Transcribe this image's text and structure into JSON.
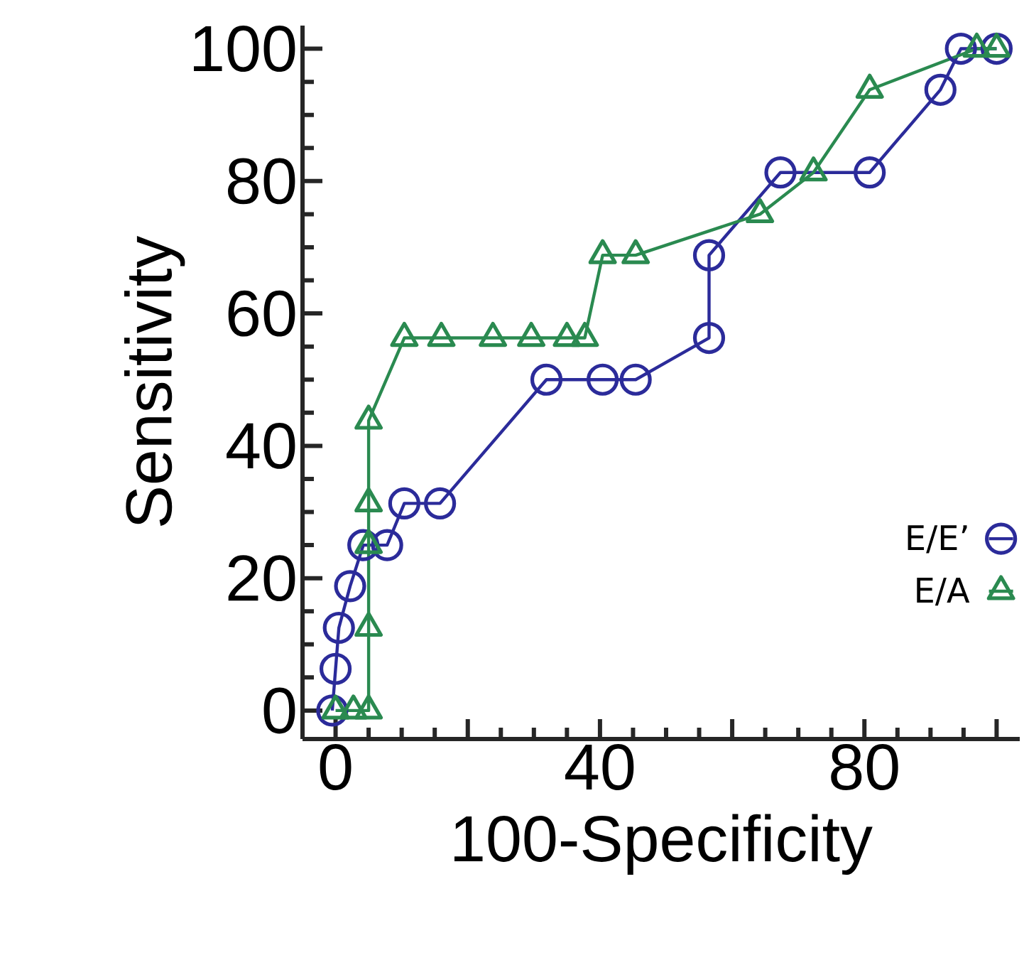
{
  "chart_data": {
    "type": "line",
    "xlabel": "100-Specificity",
    "ylabel": "Sensitivity",
    "xlim": [
      -5,
      103.5
    ],
    "ylim": [
      -4.3,
      103.5
    ],
    "xticks": [
      0,
      {
        "value": 20,
        "label": null
      },
      40,
      {
        "value": 60,
        "label": null
      },
      80,
      {
        "value": 100,
        "label": null
      }
    ],
    "yticks": [
      0,
      20,
      40,
      60,
      80,
      100
    ],
    "grid": false,
    "legend": "bottom right",
    "series": [
      {
        "name": "E/E’",
        "color": "#2b2b9a",
        "marker": "circle",
        "x": [
          -0.5,
          0,
          0.5,
          2.2,
          4.2,
          7.8,
          10.4,
          15.8,
          31.9,
          40.4,
          45.4,
          56.5,
          56.5,
          67.3,
          80.8,
          91.5,
          94.6,
          100
        ],
        "values": [
          0,
          6.3,
          12.5,
          18.8,
          25,
          25,
          31.3,
          31.3,
          50,
          50,
          50,
          56.3,
          68.8,
          81.3,
          81.3,
          93.8,
          100,
          100
        ]
      },
      {
        "name": "E/A",
        "color": "#2a8a50",
        "marker": "triangle",
        "x": [
          0,
          2.7,
          5,
          5,
          5,
          5,
          5,
          10.4,
          16,
          23.8,
          29.6,
          35,
          37.7,
          40.4,
          45.4,
          64.2,
          72.3,
          80.8,
          97,
          100
        ],
        "values": [
          0,
          0,
          0,
          12.5,
          25,
          31.3,
          43.8,
          56.3,
          56.3,
          56.3,
          56.3,
          56.3,
          56.3,
          68.8,
          68.8,
          75,
          81.3,
          93.8,
          100,
          100
        ]
      }
    ]
  }
}
